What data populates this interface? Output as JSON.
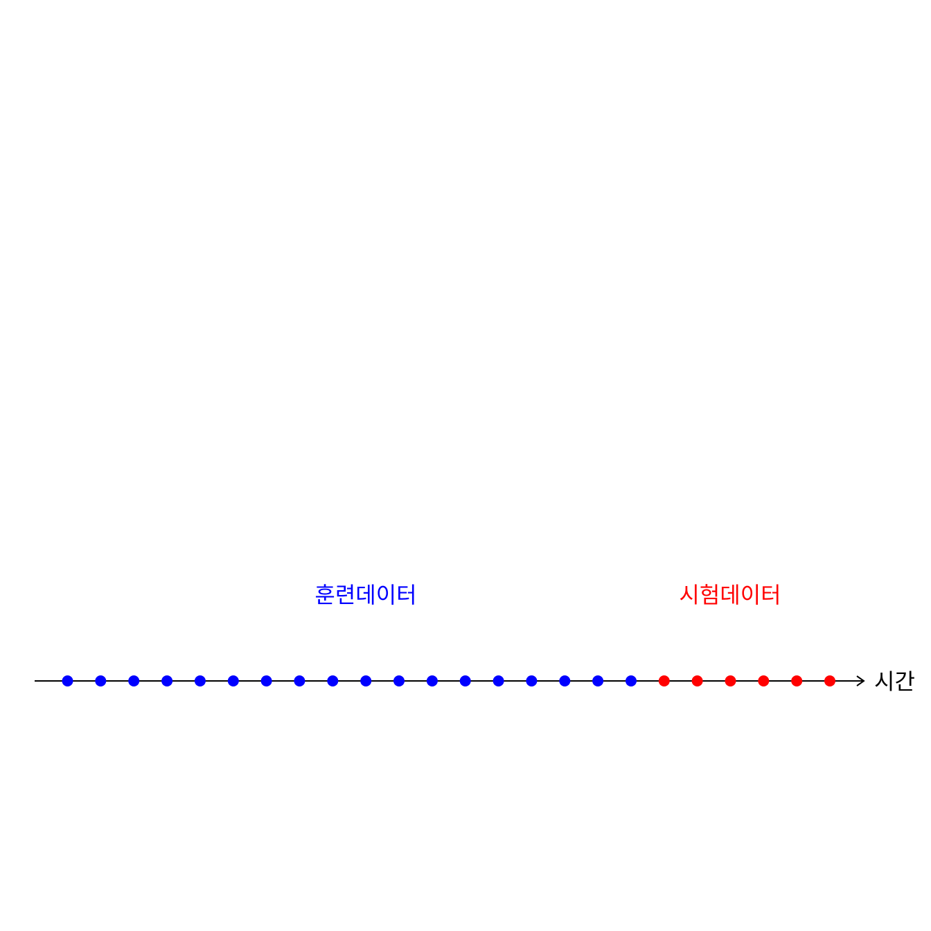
{
  "labels": {
    "train": "훈련데이터",
    "test": "시험데이터",
    "axis": "시간"
  },
  "colors": {
    "train": "#0000ff",
    "test": "#ff0000",
    "axis": "#000000"
  },
  "points": {
    "train_count": 18,
    "test_count": 6
  }
}
